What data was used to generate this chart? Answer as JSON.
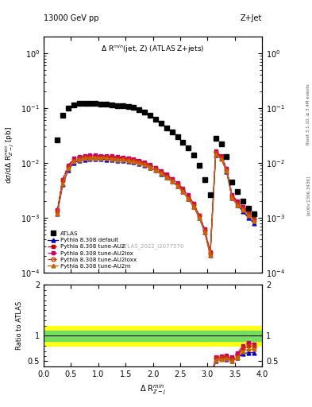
{
  "title_top": "13000 GeV pp",
  "title_right": "Z+Jet",
  "panel_title": "$\\Delta$ R$^{min}$(jet, Z) (ATLAS Z+jets)",
  "xlabel": "$\\Delta$ R$^{min}_{Z-j}$",
  "ylabel_main": "d$\\sigma$/d$\\Delta$ R$^{min}_{Z-j}$ [pb]",
  "ylabel_ratio": "Ratio to ATLAS",
  "watermark": "ATLAS_2022_I2077570",
  "right_label": "Rivet 3.1.10, ≥ 3.4M events",
  "arxiv_label": "[arXiv:1306.3436]",
  "atlas_x": [
    0.25,
    0.35,
    0.45,
    0.55,
    0.65,
    0.75,
    0.85,
    0.95,
    1.05,
    1.15,
    1.25,
    1.35,
    1.45,
    1.55,
    1.65,
    1.75,
    1.85,
    1.95,
    2.05,
    2.15,
    2.25,
    2.35,
    2.45,
    2.55,
    2.65,
    2.75,
    2.85,
    2.95,
    3.05,
    3.15,
    3.25,
    3.35,
    3.45,
    3.55,
    3.65,
    3.75,
    3.85
  ],
  "atlas_y": [
    0.026,
    0.075,
    0.1,
    0.115,
    0.12,
    0.122,
    0.122,
    0.12,
    0.118,
    0.116,
    0.114,
    0.112,
    0.11,
    0.107,
    0.102,
    0.094,
    0.085,
    0.074,
    0.063,
    0.053,
    0.044,
    0.037,
    0.03,
    0.024,
    0.019,
    0.014,
    0.009,
    0.005,
    0.0026,
    0.028,
    0.022,
    0.013,
    0.0045,
    0.003,
    0.002,
    0.0015,
    0.0012
  ],
  "py_x": [
    0.25,
    0.35,
    0.45,
    0.55,
    0.65,
    0.75,
    0.85,
    0.95,
    1.05,
    1.15,
    1.25,
    1.35,
    1.45,
    1.55,
    1.65,
    1.75,
    1.85,
    1.95,
    2.05,
    2.15,
    2.25,
    2.35,
    2.45,
    2.55,
    2.65,
    2.75,
    2.85,
    2.95,
    3.05,
    3.15,
    3.25,
    3.35,
    3.45,
    3.55,
    3.65,
    3.75,
    3.85
  ],
  "default_y": [
    0.0012,
    0.004,
    0.0075,
    0.01,
    0.011,
    0.0115,
    0.0118,
    0.0118,
    0.0117,
    0.0116,
    0.0114,
    0.0112,
    0.011,
    0.0107,
    0.0103,
    0.0097,
    0.009,
    0.0082,
    0.0073,
    0.0063,
    0.0054,
    0.0046,
    0.0038,
    0.003,
    0.0022,
    0.0016,
    0.001,
    0.00055,
    0.00021,
    0.014,
    0.012,
    0.007,
    0.0023,
    0.0017,
    0.0013,
    0.001,
    0.0008
  ],
  "au2_y": [
    0.0014,
    0.005,
    0.0088,
    0.0115,
    0.0125,
    0.013,
    0.0133,
    0.0133,
    0.0132,
    0.013,
    0.0128,
    0.0126,
    0.0123,
    0.012,
    0.0115,
    0.0108,
    0.01,
    0.0091,
    0.0081,
    0.007,
    0.006,
    0.0051,
    0.0042,
    0.0033,
    0.0025,
    0.0018,
    0.0011,
    0.0006,
    0.00023,
    0.016,
    0.013,
    0.0078,
    0.0025,
    0.0019,
    0.0015,
    0.0012,
    0.00095
  ],
  "au2lox_y": [
    0.0014,
    0.005,
    0.009,
    0.012,
    0.013,
    0.0135,
    0.0138,
    0.0138,
    0.0137,
    0.0135,
    0.0133,
    0.013,
    0.0127,
    0.0124,
    0.0119,
    0.0112,
    0.0103,
    0.0094,
    0.0083,
    0.0072,
    0.0062,
    0.0052,
    0.0043,
    0.0034,
    0.0026,
    0.0018,
    0.0011,
    0.00062,
    0.00024,
    0.0165,
    0.0133,
    0.008,
    0.0026,
    0.002,
    0.0016,
    0.0013,
    0.001
  ],
  "au2loxx_y": [
    0.0013,
    0.0048,
    0.0085,
    0.011,
    0.012,
    0.0125,
    0.0128,
    0.0128,
    0.0127,
    0.0125,
    0.0123,
    0.0121,
    0.0118,
    0.0115,
    0.011,
    0.0104,
    0.0096,
    0.0087,
    0.0077,
    0.0067,
    0.0057,
    0.0048,
    0.004,
    0.0032,
    0.0024,
    0.0017,
    0.0011,
    0.00058,
    0.00022,
    0.0155,
    0.0125,
    0.0075,
    0.0024,
    0.0018,
    0.0015,
    0.0012,
    0.00095
  ],
  "au2m_y": [
    0.0012,
    0.0042,
    0.0078,
    0.0105,
    0.0115,
    0.012,
    0.0122,
    0.0122,
    0.0121,
    0.012,
    0.0118,
    0.0116,
    0.0113,
    0.011,
    0.0106,
    0.0099,
    0.0092,
    0.0083,
    0.0074,
    0.0064,
    0.0055,
    0.0046,
    0.0038,
    0.003,
    0.0022,
    0.0016,
    0.001,
    0.00055,
    0.00021,
    0.0145,
    0.0118,
    0.0072,
    0.0023,
    0.0017,
    0.0014,
    0.0011,
    0.00088
  ],
  "ratio_band_green_low": 0.9,
  "ratio_band_green_high": 1.1,
  "ratio_band_yellow_low": 0.8,
  "ratio_band_yellow_high": 1.2,
  "color_atlas": "#000000",
  "color_default": "#0000cc",
  "color_au2": "#cc0000",
  "color_au2lox": "#cc0066",
  "color_au2loxx": "#cc3300",
  "color_au2m": "#cc6600",
  "xlim": [
    0,
    4
  ],
  "ylim_main": [
    0.0001,
    2.0
  ],
  "ylim_ratio": [
    0.4,
    2.0
  ],
  "ratio_yticks": [
    0.5,
    1.0,
    2.0
  ],
  "ratio_yticklabels": [
    "0.5",
    "1",
    "2"
  ]
}
